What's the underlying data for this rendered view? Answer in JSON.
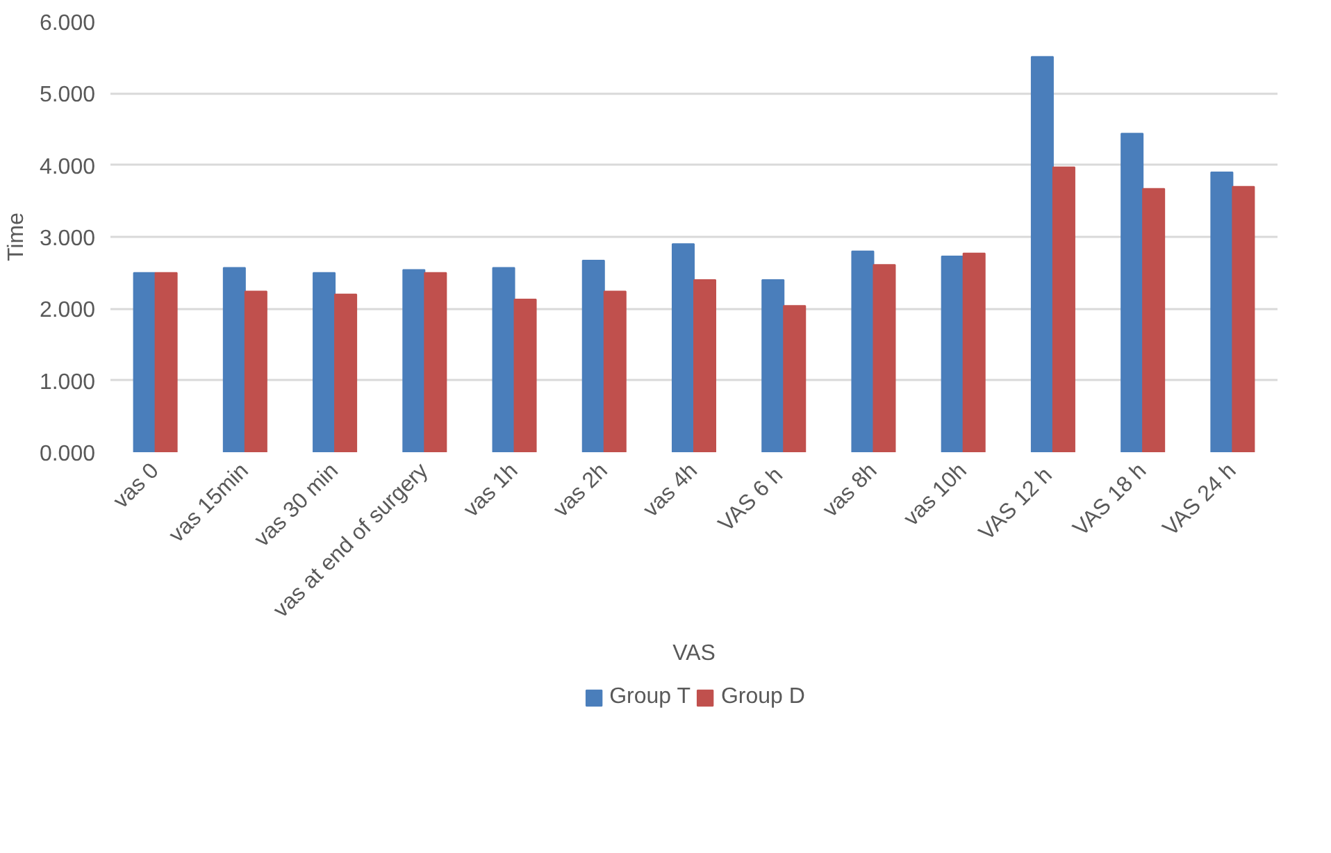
{
  "chart_data": {
    "type": "bar",
    "xlabel": "VAS",
    "ylabel": "Time",
    "categories": [
      "vas 0",
      "vas 15min",
      "vas 30 min",
      "vas at end of surgery",
      "vas 1h",
      "vas 2h",
      "vas 4h",
      "VAS  6 h",
      "vas 8h",
      "vas 10h",
      "VAS  12 h",
      "VAS 18 h",
      "VAS 24 h"
    ],
    "series": [
      {
        "name": "Group T",
        "color": "#4a7ebb",
        "values": [
          2.5,
          2.57,
          2.5,
          2.54,
          2.57,
          2.67,
          2.9,
          2.4,
          2.8,
          2.73,
          5.51,
          4.44,
          3.9
        ]
      },
      {
        "name": "Group D",
        "color": "#c0504d",
        "values": [
          2.5,
          2.24,
          2.2,
          2.5,
          2.13,
          2.24,
          2.4,
          2.04,
          2.61,
          2.77,
          3.97,
          3.67,
          3.7
        ]
      }
    ],
    "ylim": [
      0,
      6
    ],
    "yticks": [
      {
        "value": 0,
        "label": "0.000"
      },
      {
        "value": 1,
        "label": "1.000"
      },
      {
        "value": 2,
        "label": "2.000"
      },
      {
        "value": 3,
        "label": "3.000"
      },
      {
        "value": 4,
        "label": "4.000"
      },
      {
        "value": 5,
        "label": "5.000"
      },
      {
        "value": 6,
        "label": "6.000"
      }
    ],
    "grid": "y",
    "legend": "bottom"
  }
}
